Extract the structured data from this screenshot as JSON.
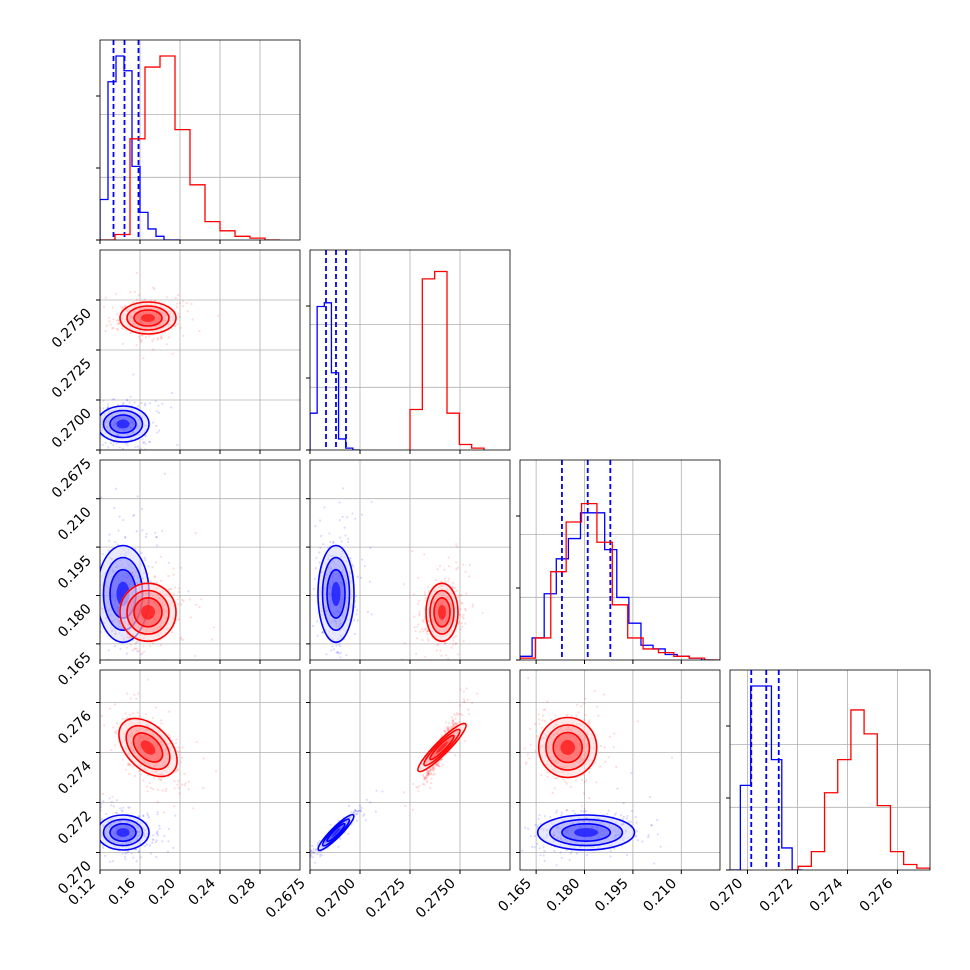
{
  "chart_data": {
    "type": "corner",
    "grid": true,
    "colors": {
      "series_a": "#0000ff",
      "series_b": "#ff0000"
    },
    "parameters": [
      {
        "range": [
          0.12,
          0.32
        ],
        "ticks": [
          "0.12",
          "0.16",
          "0.20",
          "0.24",
          "0.28"
        ],
        "tick_values": [
          0.12,
          0.16,
          0.2,
          0.24,
          0.28
        ]
      },
      {
        "range": [
          0.2675,
          0.2775
        ],
        "ticks": [
          "0.2675",
          "0.2700",
          "0.2725",
          "0.2750"
        ],
        "tick_values": [
          0.2675,
          0.27,
          0.2725,
          0.275
        ]
      },
      {
        "range": [
          0.16,
          0.222
        ],
        "ticks": [
          "0.165",
          "0.180",
          "0.195",
          "0.210"
        ],
        "tick_values": [
          0.165,
          0.18,
          0.195,
          0.21
        ]
      },
      {
        "range": [
          0.2693,
          0.2773
        ],
        "ticks": [
          "0.270",
          "0.272",
          "0.274",
          "0.276"
        ],
        "tick_values": [
          0.27,
          0.272,
          0.274,
          0.276
        ]
      }
    ],
    "series": [
      {
        "color": "#0000ff",
        "means": [
          0.143,
          0.2688,
          0.1805,
          0.2708
        ],
        "stds": [
          0.013,
          0.00045,
          0.0075,
          0.00035
        ],
        "quantiles": [
          [
            0.1335,
            0.1445,
            0.1585
          ],
          [
            0.2683,
            0.2688,
            0.2693
          ],
          [
            0.173,
            0.181,
            0.188
          ],
          [
            0.27015,
            0.27075,
            0.27125
          ]
        ],
        "hist": [
          {
            "edges": [
              0.12,
              0.2
            ],
            "counts": [
              0.22,
              0.86,
              1.0,
              0.92,
              0.4,
              0.15,
              0.06,
              0.02,
              0.0,
              0.0
            ]
          },
          {
            "edges": [
              0.2675,
              0.27
            ],
            "counts": [
              0.2,
              0.78,
              0.8,
              0.42,
              0.06,
              0.01,
              0.0
            ]
          },
          {
            "edges": [
              0.16,
              0.22
            ],
            "counts": [
              0.02,
              0.12,
              0.36,
              0.55,
              0.66,
              0.8,
              0.8,
              0.6,
              0.34,
              0.2,
              0.08,
              0.06,
              0.03,
              0.02,
              0.01,
              0.0
            ]
          },
          {
            "edges": [
              0.2693,
              0.2722
            ],
            "counts": [
              0.0,
              0.46,
              1.0,
              1.0,
              0.6,
              0.12,
              0.0
            ]
          }
        ]
      },
      {
        "color": "#ff0000",
        "means": [
          0.168,
          0.2741,
          0.1748,
          0.2742
        ],
        "stds": [
          0.014,
          0.0004,
          0.0045,
          0.0006
        ],
        "quantiles": null,
        "hist": [
          {
            "edges": [
              0.12,
              0.3
            ],
            "counts": [
              0.0,
              0.03,
              0.55,
              0.94,
              1.0,
              0.6,
              0.3,
              0.1,
              0.05,
              0.02,
              0.01,
              0.0
            ]
          },
          {
            "edges": [
              0.2725,
              0.2762
            ],
            "counts": [
              0.22,
              0.93,
              0.97,
              0.2,
              0.03,
              0.01
            ]
          },
          {
            "edges": [
              0.16,
              0.222
            ],
            "counts": [
              0.01,
              0.12,
              0.48,
              0.75,
              0.85,
              0.64,
              0.3,
              0.12,
              0.06,
              0.04,
              0.02,
              0.01,
              0.0
            ]
          },
          {
            "edges": [
              0.2715,
              0.2773
            ],
            "counts": [
              0.0,
              0.02,
              0.1,
              0.42,
              0.6,
              0.87,
              0.74,
              0.35,
              0.1,
              0.03,
              0.01
            ]
          }
        ]
      }
    ],
    "correlations": [
      {
        "pair": [
          0,
          1
        ],
        "a": 0.0,
        "b": 0.05
      },
      {
        "pair": [
          0,
          2
        ],
        "a": 0.05,
        "b": 0.05
      },
      {
        "pair": [
          1,
          2
        ],
        "a": 0.05,
        "b": 0.05
      },
      {
        "pair": [
          0,
          3
        ],
        "a": -0.15,
        "b": -0.45
      },
      {
        "pair": [
          1,
          3
        ],
        "a": 0.93,
        "b": 0.93
      },
      {
        "pair": [
          2,
          3
        ],
        "a": 0.15,
        "b": 0.05
      }
    ],
    "mark_style": {
      "dashed_lines": "quantiles",
      "contours": 3,
      "scatter": true
    }
  }
}
